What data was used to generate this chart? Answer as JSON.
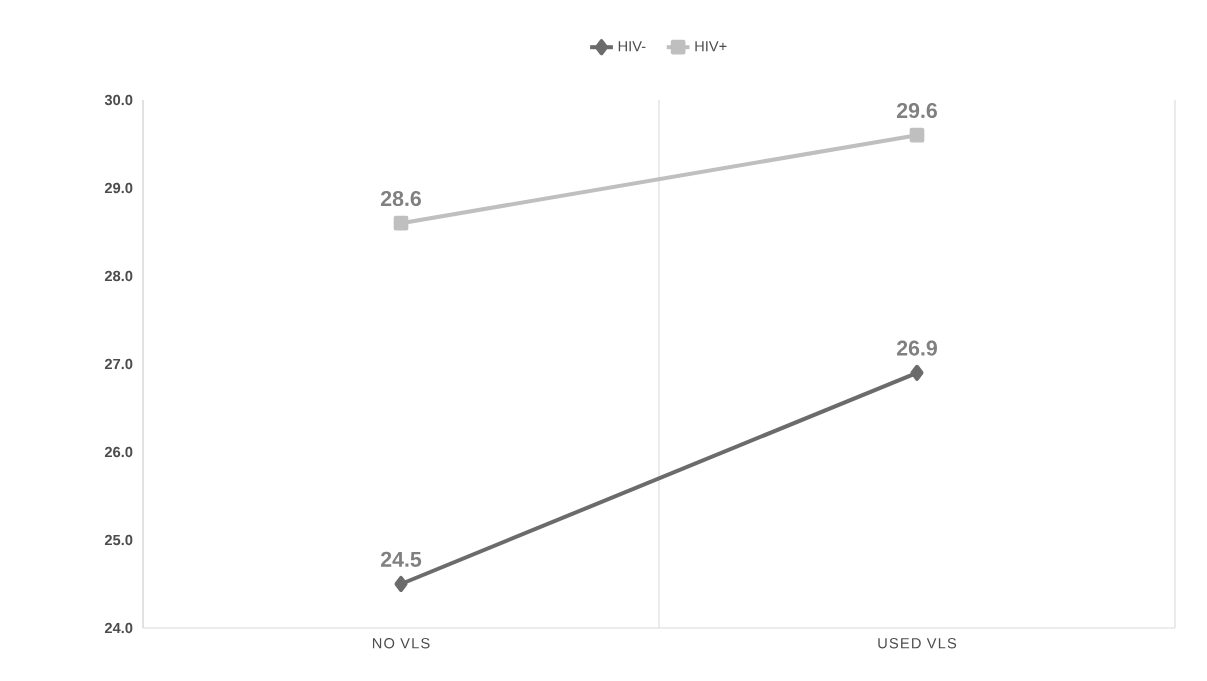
{
  "chart_data": {
    "type": "line",
    "categories": [
      "NO VLS",
      "USED VLS"
    ],
    "series": [
      {
        "name": "HIV-",
        "color": "#6b6b6b",
        "marker": "diamond",
        "values": [
          24.5,
          26.9
        ]
      },
      {
        "name": "HIV+",
        "color": "#bfbfbf",
        "marker": "square",
        "values": [
          28.6,
          29.6
        ]
      }
    ],
    "ylim": [
      24,
      30
    ],
    "yticks": [
      {
        "value": 24,
        "label": "24.0"
      },
      {
        "value": 25,
        "label": "25.0"
      },
      {
        "value": 26,
        "label": "26.0"
      },
      {
        "value": 27,
        "label": "27.0"
      },
      {
        "value": 28,
        "label": "28.0"
      },
      {
        "value": 29,
        "label": "29.0"
      },
      {
        "value": 30,
        "label": "30.0"
      }
    ],
    "grid": "x",
    "legend": "top",
    "data_labels": true,
    "line_style": "solid"
  }
}
